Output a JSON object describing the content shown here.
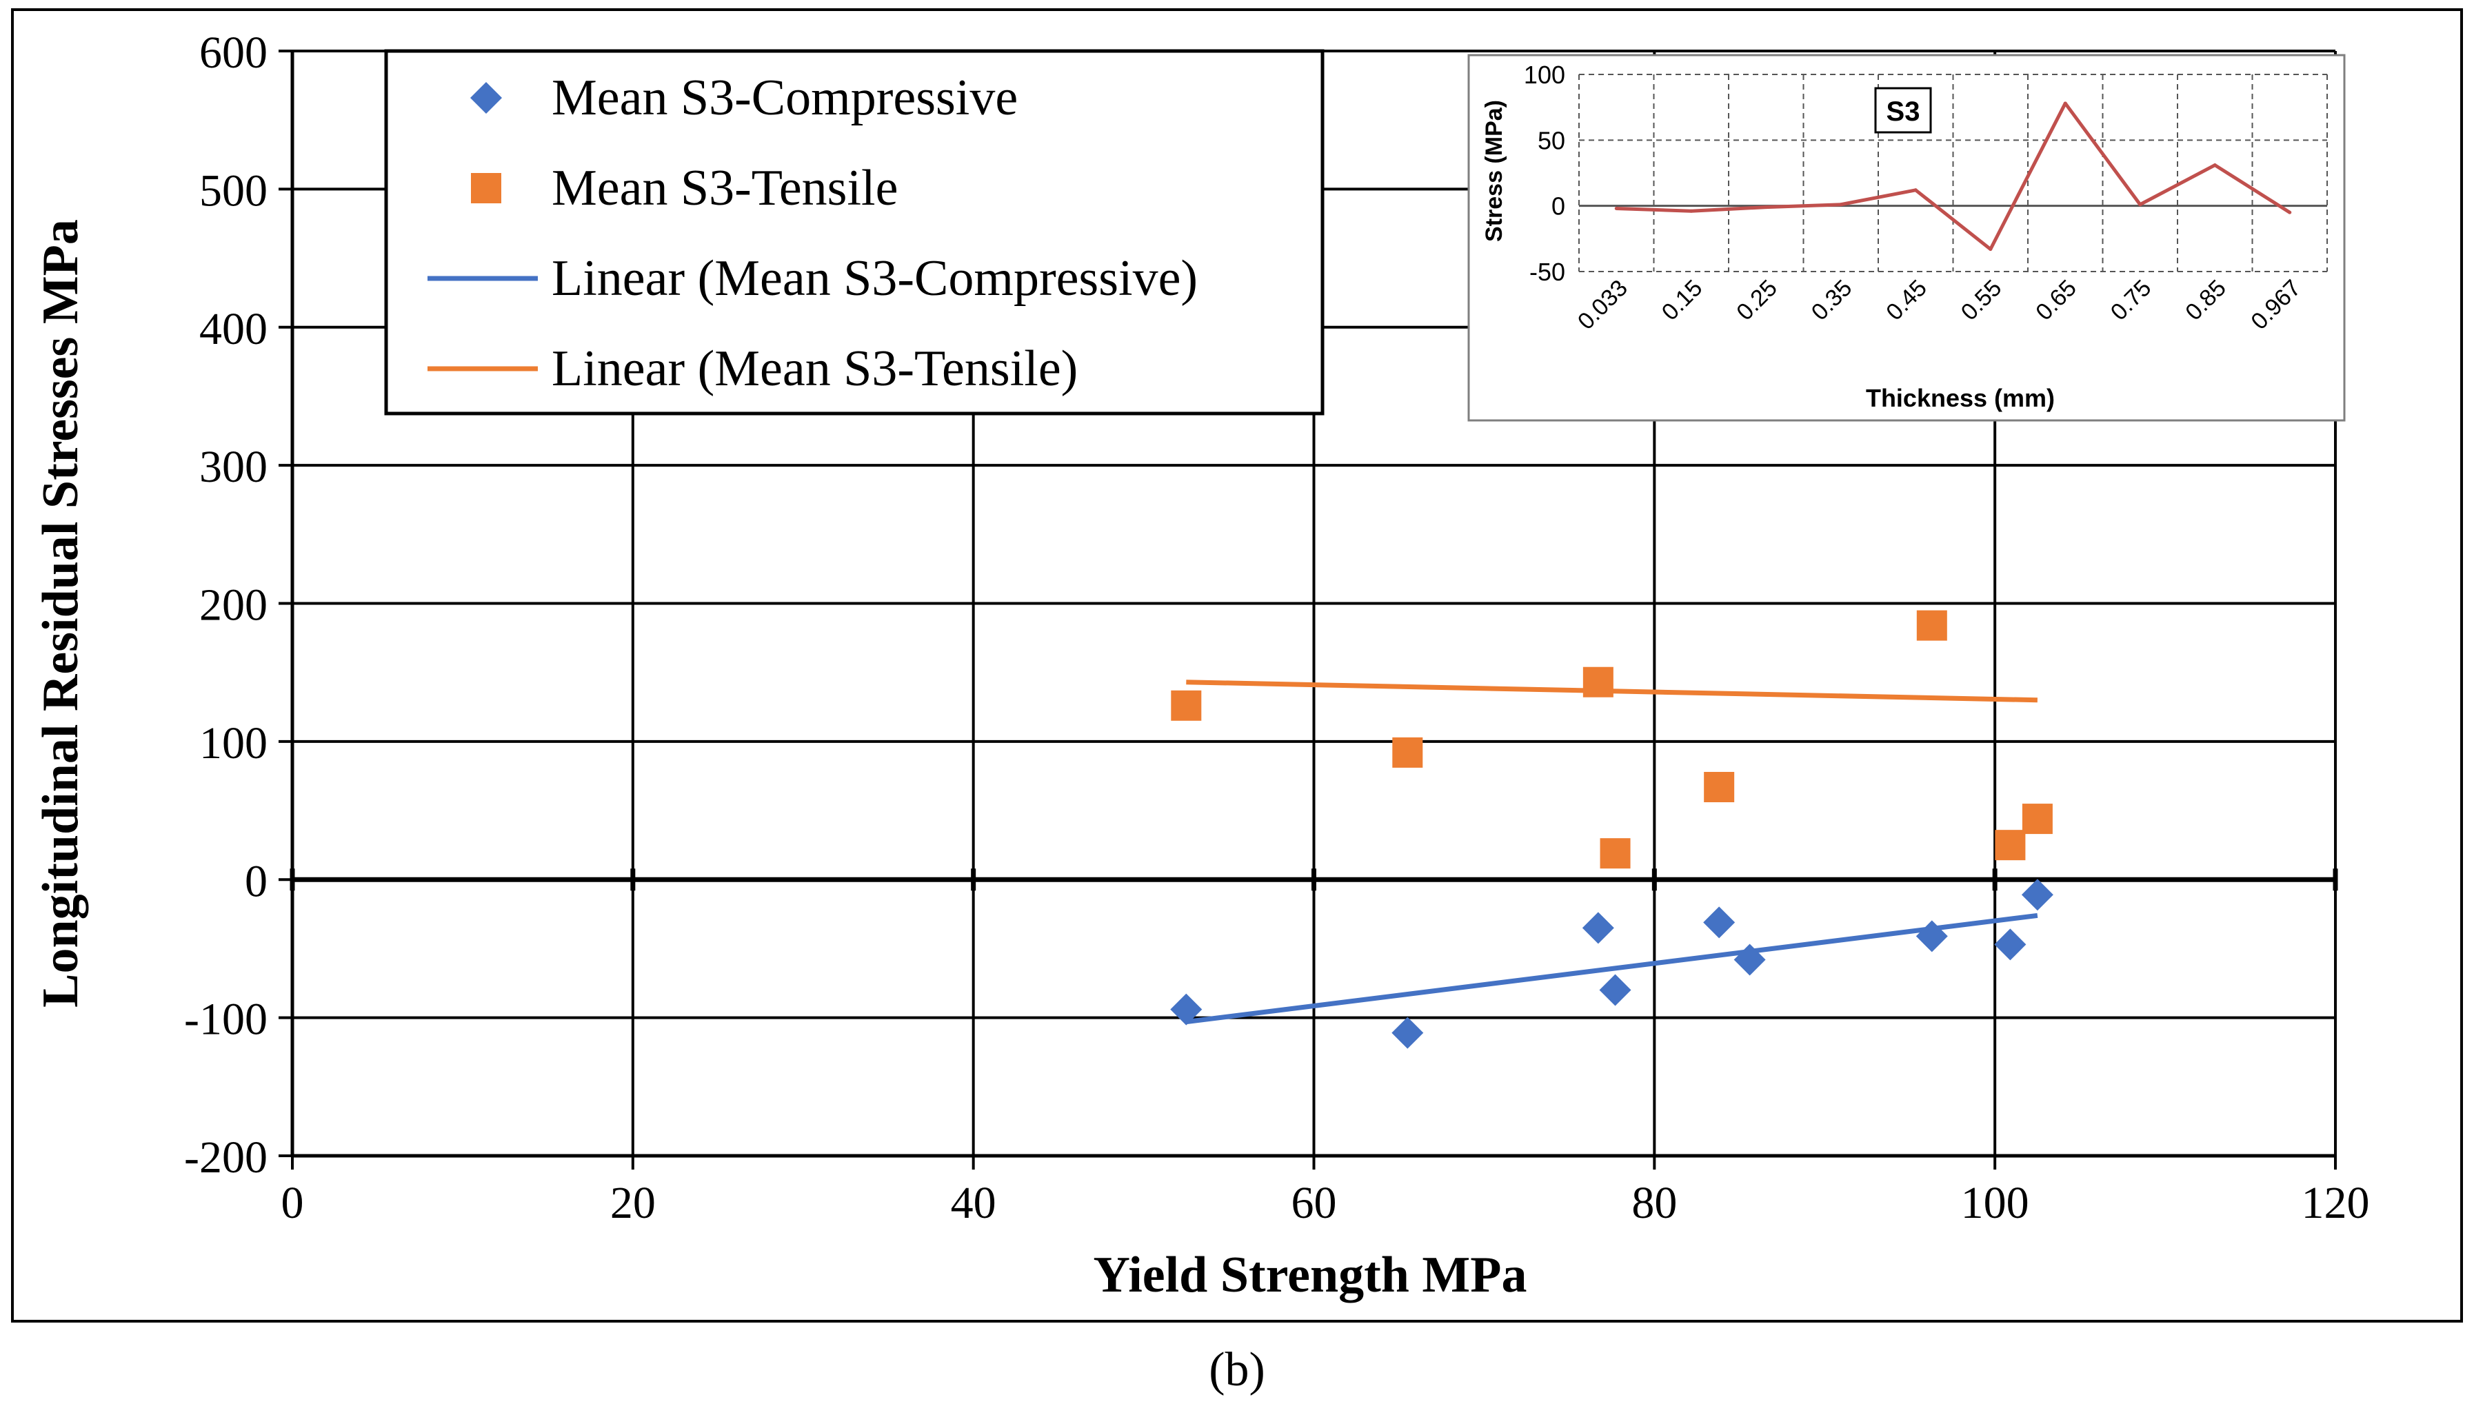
{
  "caption": "(b)",
  "colors": {
    "compressive": "#4472C4",
    "tensile": "#ED7D31",
    "inset_line": "#C0504D",
    "axis": "#000000",
    "grid": "#000000"
  },
  "chart_data": [
    {
      "type": "scatter",
      "xlabel": "Yield Strength MPa",
      "ylabel": "Longitudinal Residual Stresses MPa",
      "xlim": [
        0,
        120
      ],
      "ylim": [
        -200,
        600
      ],
      "xticks": [
        "0",
        "20",
        "40",
        "60",
        "80",
        "100",
        "120"
      ],
      "yticks": [
        "-200",
        "-100",
        "0",
        "100",
        "200",
        "300",
        "400",
        "500",
        "600"
      ],
      "grid": true,
      "legend_position": "top-left",
      "series": [
        {
          "name": "Mean S3-Compressive",
          "marker": "diamond",
          "color": "#4472C4",
          "points": [
            [
              52.5,
              -94
            ],
            [
              65.5,
              -111
            ],
            [
              76.7,
              -35
            ],
            [
              77.7,
              -80
            ],
            [
              83.8,
              -31
            ],
            [
              85.6,
              -58
            ],
            [
              96.3,
              -41
            ],
            [
              100.9,
              -47
            ],
            [
              102.5,
              -11
            ]
          ]
        },
        {
          "name": "Mean S3-Tensile",
          "marker": "square",
          "color": "#ED7D31",
          "points": [
            [
              52.5,
              126
            ],
            [
              65.5,
              92
            ],
            [
              76.7,
              143
            ],
            [
              77.7,
              19
            ],
            [
              83.8,
              67
            ],
            [
              96.3,
              184
            ],
            [
              100.9,
              25
            ],
            [
              102.5,
              44
            ]
          ]
        },
        {
          "name": "Linear (Mean S3-Compressive)",
          "type": "line",
          "color": "#4472C4",
          "points": [
            [
              52.5,
              -103
            ],
            [
              102.5,
              -26
            ]
          ]
        },
        {
          "name": "Linear (Mean S3-Tensile)",
          "type": "line",
          "color": "#ED7D31",
          "points": [
            [
              52.5,
              143
            ],
            [
              102.5,
              130
            ]
          ]
        }
      ]
    },
    {
      "type": "line",
      "annotation": "S3",
      "xlabel": "Thickness (mm)",
      "ylabel": "Stress (MPa)",
      "categories": [
        "0.033",
        "0.15",
        "0.25",
        "0.35",
        "0.45",
        "0.55",
        "0.65",
        "0.75",
        "0.85",
        "0.967"
      ],
      "yticks": [
        "-50",
        "0",
        "50",
        "100"
      ],
      "ylim": [
        -50,
        100
      ],
      "grid": true,
      "series": [
        {
          "color": "#C0504D",
          "values": [
            -2,
            -4,
            -1,
            1,
            12,
            -33,
            78,
            1,
            31,
            -5
          ]
        }
      ]
    }
  ]
}
